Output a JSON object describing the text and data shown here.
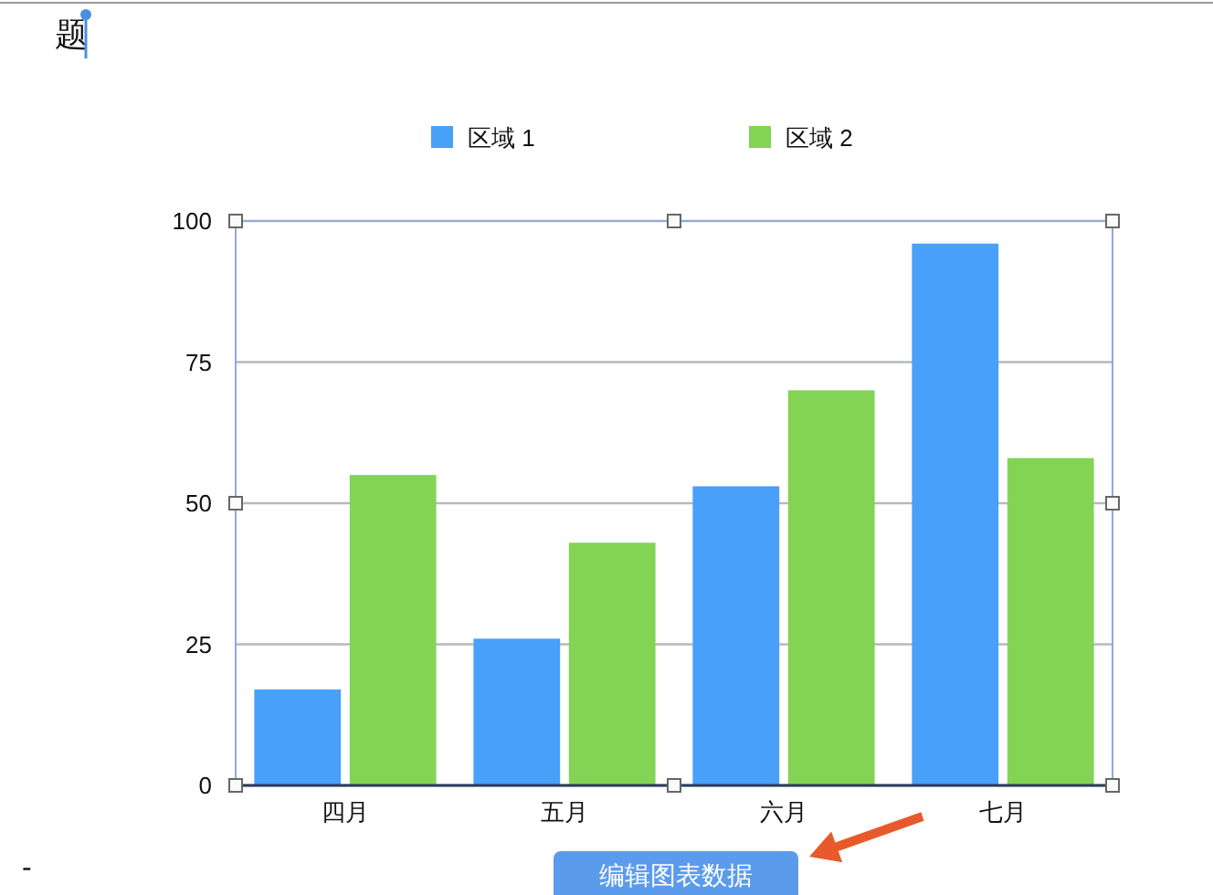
{
  "chart_data": {
    "type": "bar",
    "title": "题",
    "categories": [
      "四月",
      "五月",
      "六月",
      "七月"
    ],
    "series": [
      {
        "name": "区域 1",
        "color": "#48a0f8",
        "values": [
          17,
          26,
          53,
          96
        ]
      },
      {
        "name": "区域 2",
        "color": "#83d455",
        "values": [
          55,
          43,
          70,
          58
        ]
      }
    ],
    "ylim": [
      0,
      100
    ],
    "yticks": [
      0,
      25,
      50,
      75,
      100
    ],
    "grid": "y",
    "legend": "top",
    "annotations": [
      "编辑图表数据",
      "-"
    ]
  }
}
